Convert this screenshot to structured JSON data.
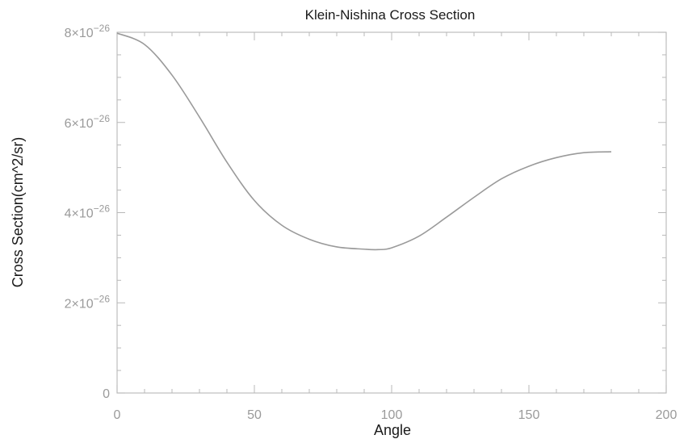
{
  "chart_data": {
    "type": "line",
    "title": "Klein-Nishina Cross Section",
    "xlabel": "Angle",
    "ylabel": "Cross Section(cm^2/sr)",
    "xlim": [
      0,
      200
    ],
    "ylim": [
      0,
      8e-26
    ],
    "x_ticks": [
      0,
      50,
      100,
      150,
      200
    ],
    "x_tick_labels": [
      "0",
      "50",
      "100",
      "150",
      "200"
    ],
    "y_ticks": [
      0,
      2e-26,
      4e-26,
      6e-26,
      8e-26
    ],
    "y_tick_labels": [
      {
        "mantissa": "0",
        "exponent": ""
      },
      {
        "mantissa": "2×10",
        "exponent": "−26"
      },
      {
        "mantissa": "4×10",
        "exponent": "−26"
      },
      {
        "mantissa": "6×10",
        "exponent": "−26"
      },
      {
        "mantissa": "8×10",
        "exponent": "−26"
      }
    ],
    "grid": false,
    "legend": "none",
    "series": [
      {
        "x": [
          0,
          10,
          20,
          30,
          40,
          50,
          60,
          70,
          80,
          90,
          95,
          100,
          110,
          120,
          130,
          140,
          150,
          160,
          170,
          180
        ],
        "y": [
          7.98e-26,
          7.73e-26,
          7.05e-26,
          6.12e-26,
          5.12e-26,
          4.27e-26,
          3.72e-26,
          3.41e-26,
          3.24e-26,
          3.19e-26,
          3.18e-26,
          3.22e-26,
          3.48e-26,
          3.9e-26,
          4.34e-26,
          4.75e-26,
          5.03e-26,
          5.22e-26,
          5.33e-26,
          5.35e-26
        ],
        "color": "#9a9a9a"
      }
    ]
  }
}
